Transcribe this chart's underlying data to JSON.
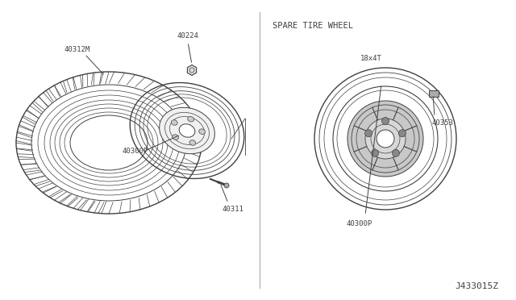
{
  "bg_color": "#ffffff",
  "line_color": "#404040",
  "text_color": "#404040",
  "title_spare": "SPARE TIRE WHEEL",
  "label_18x4T": "18x4T",
  "part_40312M": "40312M",
  "part_40300P": "40300P",
  "part_40311": "40311",
  "part_40224": "40224",
  "part_40300P_spare": "40300P",
  "part_40353": "40353",
  "diagram_id": "J433015Z",
  "font_size_labels": 6.5,
  "font_size_title": 7.5,
  "font_size_id": 8
}
